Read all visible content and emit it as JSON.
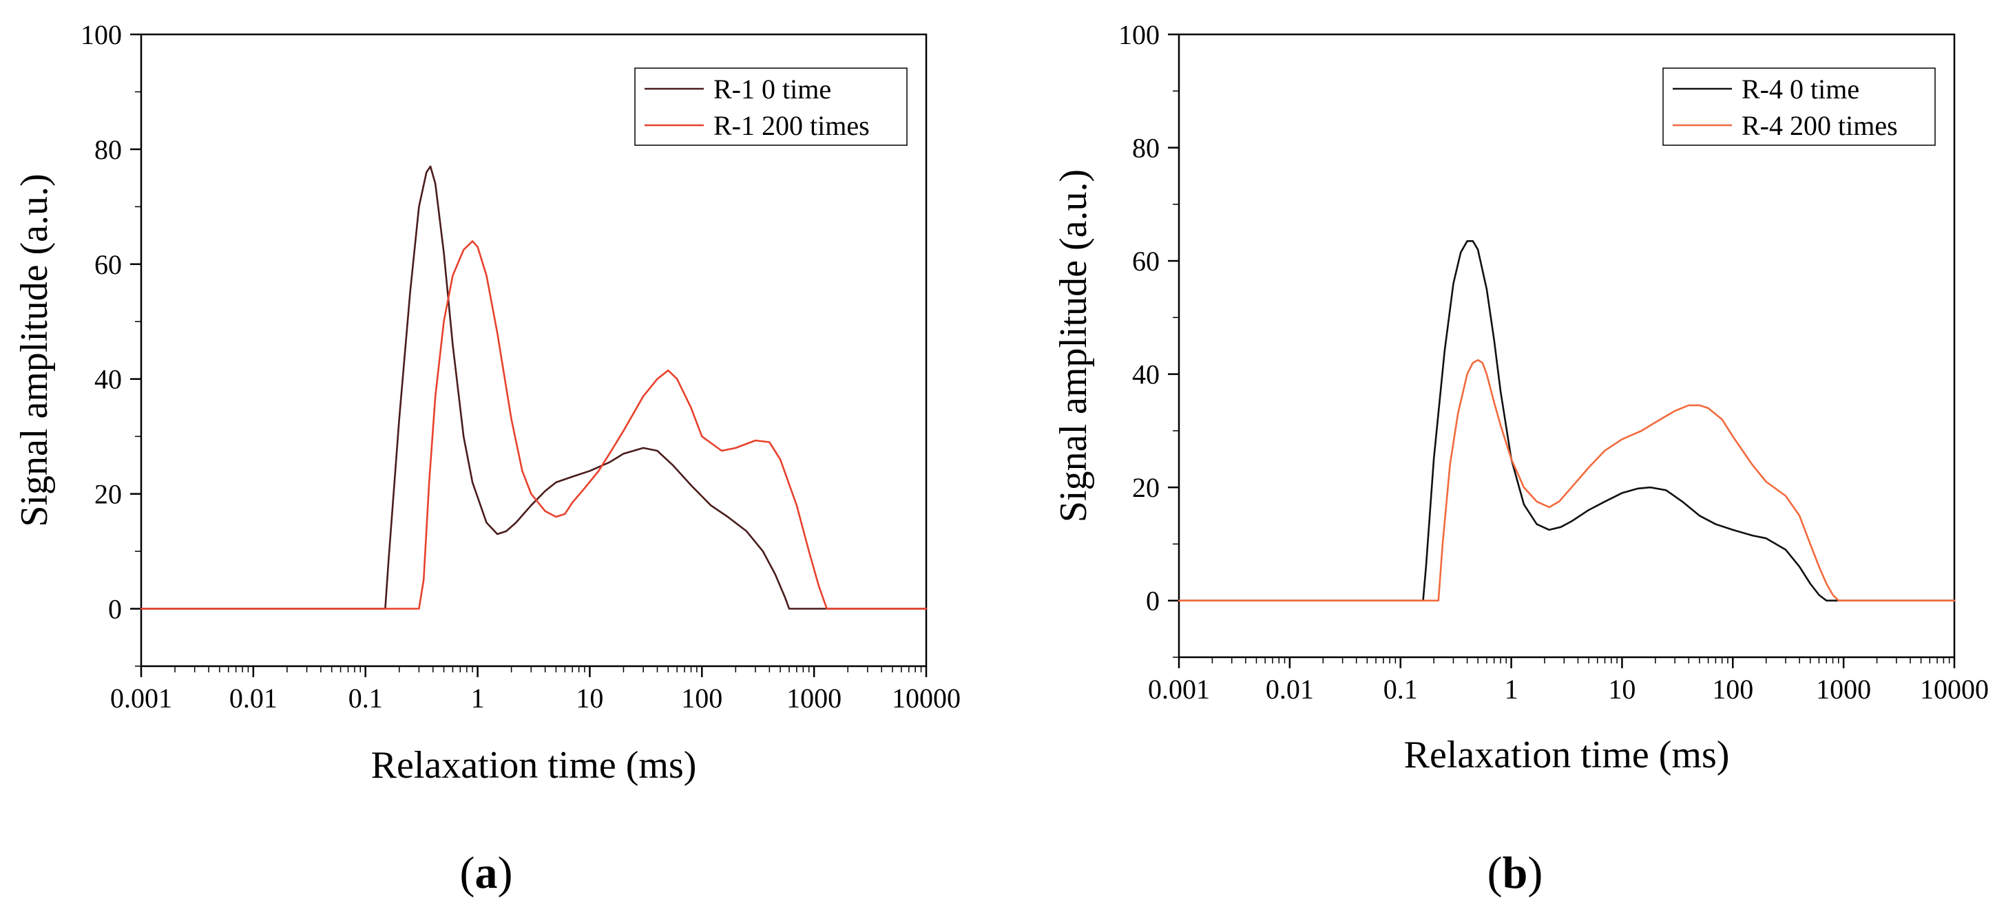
{
  "chart_data": [
    {
      "type": "line",
      "panel_label_open": "(",
      "panel_label_letter": "a",
      "panel_label_close": ")",
      "xlabel": "Relaxation time  (ms)",
      "ylabel": "Signal amplitude (a.u.)",
      "xscale": "log",
      "xlim": [
        0.001,
        10000
      ],
      "ylim": [
        -10,
        100
      ],
      "xticks": [
        0.001,
        0.01,
        0.1,
        1,
        10,
        100,
        1000,
        10000
      ],
      "xtick_labels": [
        "0.001",
        "0.01",
        "0.1",
        "1",
        "10",
        "100",
        "1000",
        "10000"
      ],
      "yticks": [
        0,
        20,
        40,
        60,
        80,
        100
      ],
      "ytick_labels": [
        "0",
        "20",
        "40",
        "60",
        "80",
        "100"
      ],
      "legend_position": "top-right",
      "series": [
        {
          "name": "R-1 0 time",
          "color": "#4a1c1c",
          "x": [
            0.001,
            0.15,
            0.16,
            0.2,
            0.25,
            0.3,
            0.35,
            0.38,
            0.42,
            0.5,
            0.6,
            0.75,
            0.9,
            1.2,
            1.5,
            1.8,
            2.2,
            3,
            4,
            5,
            7,
            10,
            15,
            20,
            30,
            40,
            55,
            80,
            120,
            170,
            250,
            350,
            450,
            550,
            600,
            650,
            1000,
            10000
          ],
          "y": [
            0,
            0,
            8,
            33,
            55,
            70,
            76,
            77,
            74,
            62,
            46,
            30,
            22,
            15,
            13,
            13.5,
            15,
            18,
            20.5,
            22,
            23,
            24,
            25.5,
            27,
            28,
            27.5,
            25,
            21.5,
            18,
            16,
            13.5,
            10,
            6,
            2,
            0,
            0,
            0,
            0
          ]
        },
        {
          "name": "R-1 200 times",
          "color": "#e8412c",
          "x": [
            0.001,
            0.3,
            0.33,
            0.37,
            0.42,
            0.5,
            0.6,
            0.75,
            0.9,
            1,
            1.2,
            1.5,
            2,
            2.5,
            3,
            4,
            5,
            6,
            7,
            9,
            12,
            15,
            20,
            30,
            40,
            50,
            60,
            80,
            100,
            150,
            200,
            300,
            400,
            500,
            700,
            900,
            1100,
            1300,
            10000
          ],
          "y": [
            0,
            0,
            5,
            22,
            37,
            50,
            58,
            62.5,
            64,
            63,
            58,
            48,
            33,
            24,
            20,
            17,
            16,
            16.5,
            18.5,
            21,
            24,
            27,
            31,
            37,
            40,
            41.5,
            40,
            35,
            30,
            27.5,
            28,
            29.3,
            29,
            26,
            18,
            10,
            4,
            0,
            0
          ]
        }
      ]
    },
    {
      "type": "line",
      "panel_label_open": "(",
      "panel_label_letter": "b",
      "panel_label_close": ")",
      "xlabel": "Relaxation time  (ms)",
      "ylabel": "Signal amplitude (a.u.)",
      "xscale": "log",
      "xlim": [
        0.001,
        10000
      ],
      "ylim": [
        -10,
        100
      ],
      "xticks": [
        0.001,
        0.01,
        0.1,
        1,
        10,
        100,
        1000,
        10000
      ],
      "xtick_labels": [
        "0.001",
        "0.01",
        "0.1",
        "1",
        "10",
        "100",
        "1000",
        "10000"
      ],
      "yticks": [
        0,
        20,
        40,
        60,
        80,
        100
      ],
      "ytick_labels": [
        "0",
        "20",
        "40",
        "60",
        "80",
        "100"
      ],
      "legend_position": "top-right",
      "series": [
        {
          "name": "R-4 0 time",
          "color": "#111111",
          "x": [
            0.001,
            0.16,
            0.17,
            0.2,
            0.25,
            0.3,
            0.35,
            0.4,
            0.45,
            0.5,
            0.6,
            0.7,
            0.8,
            1,
            1.3,
            1.7,
            2.2,
            2.8,
            3.5,
            5,
            7,
            10,
            14,
            18,
            25,
            35,
            50,
            70,
            100,
            150,
            200,
            300,
            400,
            500,
            600,
            700,
            10000
          ],
          "y": [
            0,
            0,
            6,
            25,
            44,
            56,
            61.5,
            63.5,
            63.5,
            62,
            55,
            46,
            37,
            25,
            17,
            13.5,
            12.5,
            13,
            14,
            16,
            17.5,
            19,
            19.8,
            20,
            19.5,
            17.5,
            15,
            13.5,
            12.5,
            11.5,
            11,
            9,
            6,
            3,
            1,
            0,
            0
          ]
        },
        {
          "name": "R-4 200 times",
          "color": "#f26a3d",
          "x": [
            0.001,
            0.22,
            0.24,
            0.28,
            0.33,
            0.4,
            0.45,
            0.5,
            0.55,
            0.6,
            0.7,
            0.8,
            1,
            1.3,
            1.7,
            2.2,
            2.7,
            3.5,
            5,
            7,
            10,
            15,
            20,
            30,
            40,
            50,
            60,
            80,
            100,
            150,
            200,
            300,
            400,
            500,
            600,
            700,
            800,
            900,
            10000
          ],
          "y": [
            0,
            0,
            10,
            24,
            33,
            40,
            42,
            42.5,
            42,
            40,
            35,
            31,
            25,
            20,
            17.5,
            16.5,
            17.5,
            20,
            23.5,
            26.5,
            28.5,
            30,
            31.5,
            33.5,
            34.5,
            34.5,
            34,
            32,
            29,
            24,
            21,
            18.5,
            15,
            10,
            6,
            3,
            1,
            0,
            0
          ]
        }
      ]
    }
  ]
}
